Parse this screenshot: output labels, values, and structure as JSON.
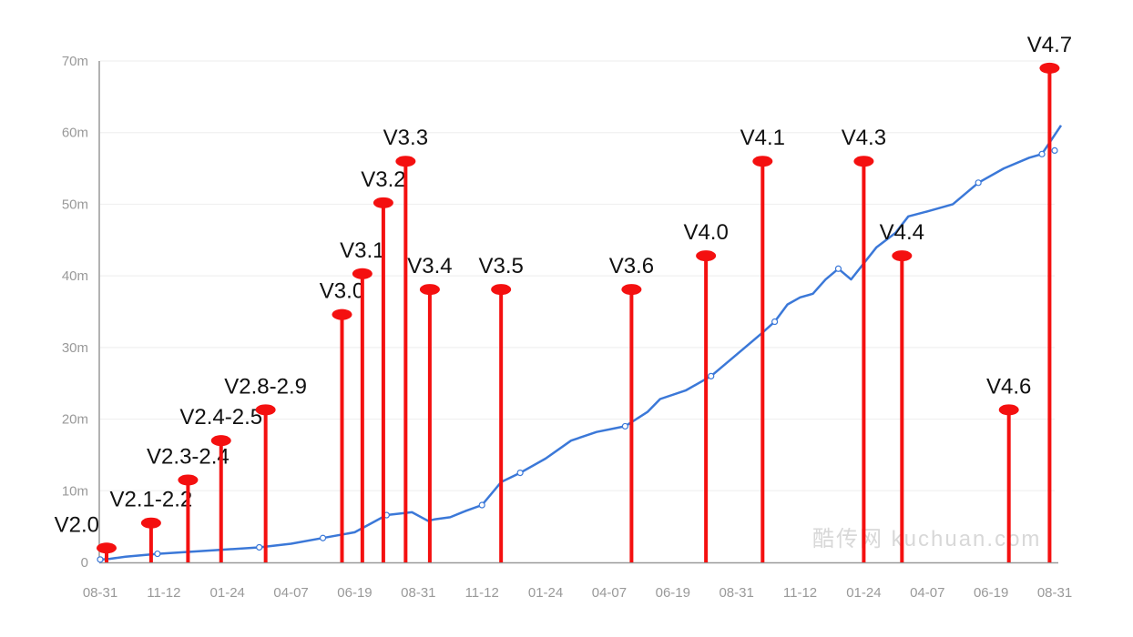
{
  "watermark": "酷传网 kuchuan.com",
  "colors": {
    "trend": "#3b78d8",
    "release": "#f41010",
    "axis": "#999999",
    "grid": "#eeeeee",
    "point_fill": "#ffffff"
  },
  "chart_data": {
    "type": "line",
    "ylim": [
      0,
      70
    ],
    "y_ticks": [
      "0",
      "10m",
      "20m",
      "30m",
      "40m",
      "50m",
      "60m",
      "70m"
    ],
    "x_ticks": [
      "08-31",
      "11-12",
      "01-24",
      "04-07",
      "06-19",
      "08-31",
      "11-12",
      "01-24",
      "04-07",
      "06-19",
      "08-31",
      "11-12",
      "01-24",
      "04-07",
      "06-19",
      "08-31"
    ],
    "series": [
      {
        "kind": "cumulative-downloads",
        "x": [
          0,
          0.15,
          0.4,
          0.9,
          1.8,
          2.5,
          3.0,
          3.5,
          4.0,
          4.5,
          4.9,
          5.15,
          5.25,
          5.5,
          5.75,
          6.0,
          6.3,
          6.6,
          7.0,
          7.4,
          7.8,
          8.25,
          8.6,
          8.8,
          9.2,
          9.6,
          10.0,
          10.4,
          10.6,
          10.8,
          11.0,
          11.2,
          11.4,
          11.6,
          11.8,
          12.2,
          12.5,
          12.7,
          13.0,
          13.4,
          13.8,
          14.2,
          14.6,
          14.8,
          15.1
        ],
        "values": [
          0.4,
          0.5,
          0.8,
          1.2,
          1.7,
          2.1,
          2.6,
          3.4,
          4.2,
          6.6,
          7.0,
          5.8,
          6.0,
          6.3,
          7.2,
          8.0,
          11.2,
          12.5,
          14.5,
          17.0,
          18.2,
          19.0,
          21.0,
          22.8,
          24.0,
          26.0,
          29.0,
          32.0,
          33.6,
          36.0,
          37.0,
          37.5,
          39.5,
          41.0,
          39.5,
          44.0,
          46.0,
          48.3,
          49.0,
          50.0,
          53.0,
          55.0,
          56.5,
          57.0,
          61.0
        ]
      }
    ],
    "releases": [
      {
        "label": "V2.0",
        "x": 0.1,
        "value": 2.0
      },
      {
        "label": "V2.1-2.2",
        "x": 0.8,
        "value": 5.5
      },
      {
        "label": "V2.3-2.4",
        "x": 1.38,
        "value": 11.5
      },
      {
        "label": "V2.4-2.5",
        "x": 1.9,
        "value": 17.0
      },
      {
        "label": "V2.8-2.9",
        "x": 2.6,
        "value": 21.3
      },
      {
        "label": "V3.0",
        "x": 3.8,
        "value": 34.6
      },
      {
        "label": "V3.1",
        "x": 4.12,
        "value": 40.3
      },
      {
        "label": "V3.2",
        "x": 4.45,
        "value": 50.2
      },
      {
        "label": "V3.3",
        "x": 4.8,
        "value": 56.0
      },
      {
        "label": "V3.4",
        "x": 5.18,
        "value": 38.1
      },
      {
        "label": "V3.5",
        "x": 6.3,
        "value": 38.1
      },
      {
        "label": "V3.6",
        "x": 8.35,
        "value": 38.1
      },
      {
        "label": "V4.0",
        "x": 9.52,
        "value": 42.8
      },
      {
        "label": "V4.1",
        "x": 10.41,
        "value": 56.0
      },
      {
        "label": "V4.3",
        "x": 12.0,
        "value": 56.0
      },
      {
        "label": "V4.4",
        "x": 12.6,
        "value": 42.8
      },
      {
        "label": "V4.6",
        "x": 14.28,
        "value": 21.3
      },
      {
        "label": "V4.7",
        "x": 14.92,
        "value": 69.0
      }
    ]
  }
}
